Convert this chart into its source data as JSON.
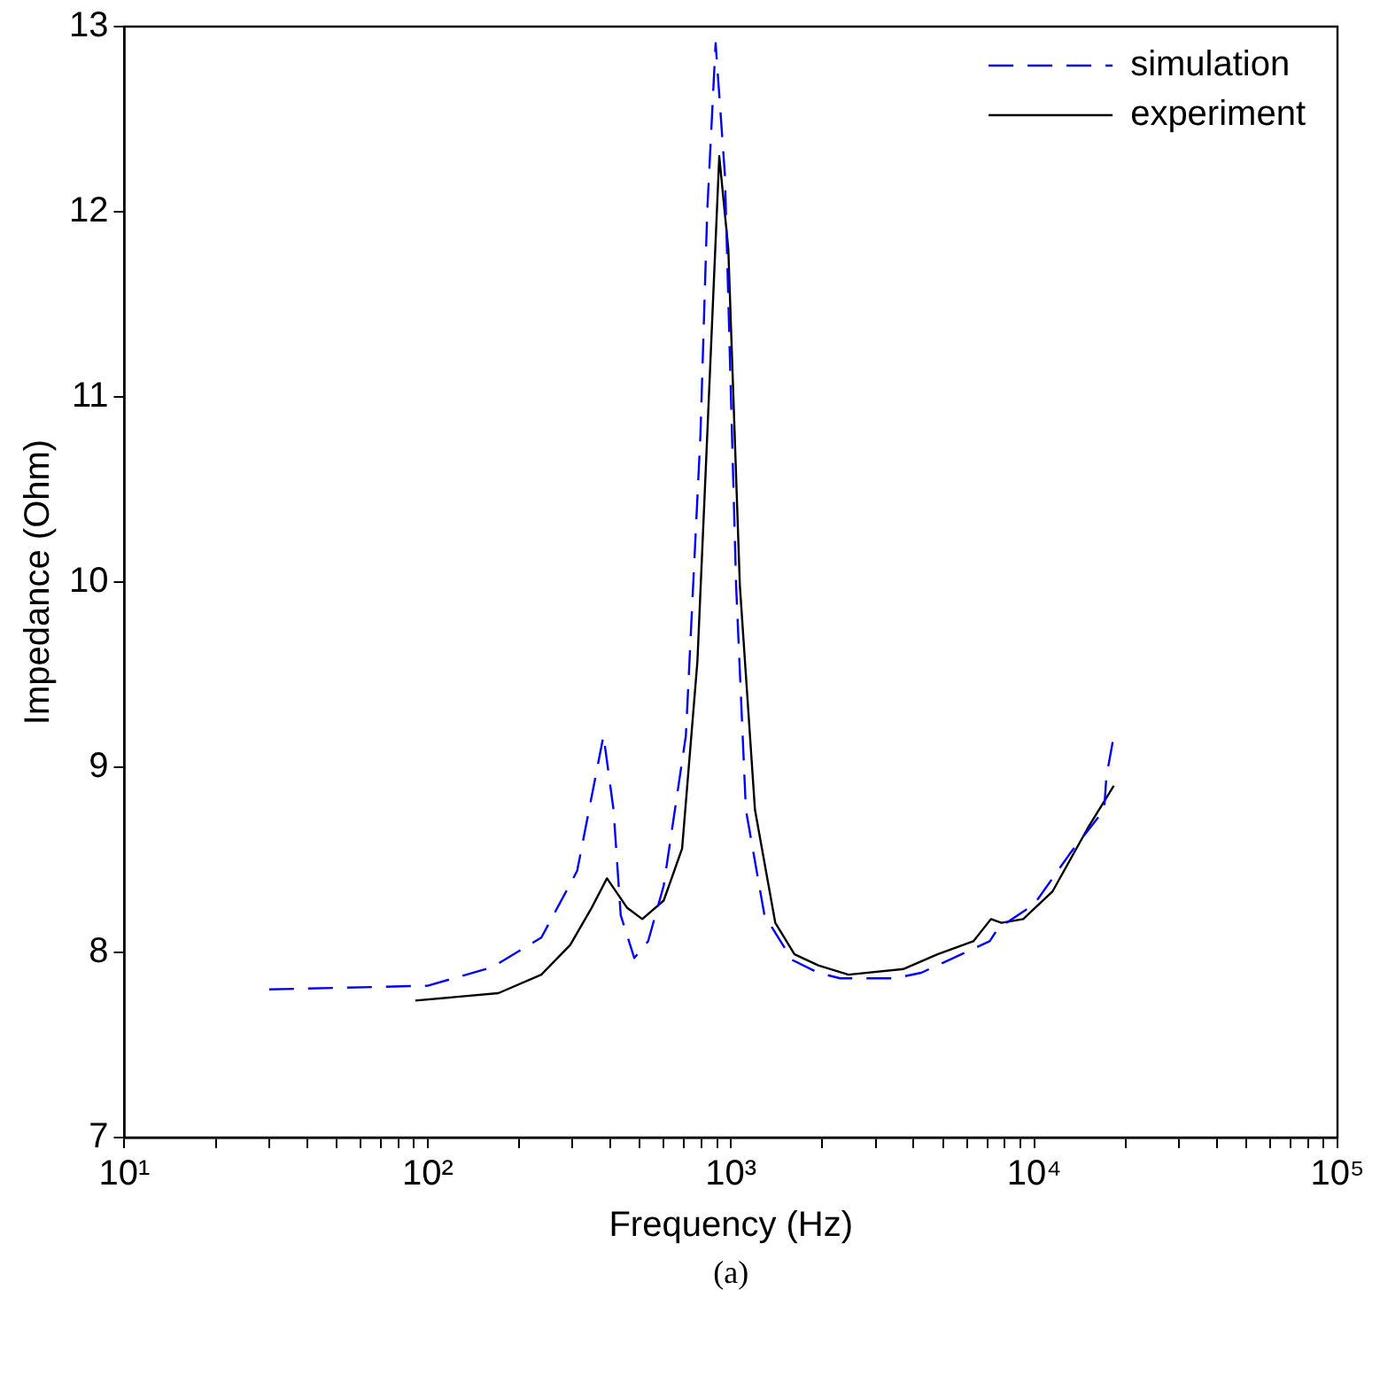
{
  "chart_data": {
    "type": "line",
    "xlabel": "Frequency (Hz)",
    "ylabel": "Impedance (Ohm)",
    "log": "x",
    "xlim": [
      10,
      100000
    ],
    "ylim": [
      7,
      13
    ],
    "xticks": [
      {
        "value": 10,
        "label": "10¹"
      },
      {
        "value": 20,
        "label": null
      },
      {
        "value": 30,
        "label": null
      },
      {
        "value": 40,
        "label": null
      },
      {
        "value": 50,
        "label": null
      },
      {
        "value": 60,
        "label": null
      },
      {
        "value": 70,
        "label": null
      },
      {
        "value": 80,
        "label": null
      },
      {
        "value": 90,
        "label": null
      },
      {
        "value": 100,
        "label": "10²"
      },
      {
        "value": 200,
        "label": null
      },
      {
        "value": 300,
        "label": null
      },
      {
        "value": 400,
        "label": null
      },
      {
        "value": 500,
        "label": null
      },
      {
        "value": 600,
        "label": null
      },
      {
        "value": 700,
        "label": null
      },
      {
        "value": 800,
        "label": null
      },
      {
        "value": 900,
        "label": null
      },
      {
        "value": 1000,
        "label": "10³"
      },
      {
        "value": 2000,
        "label": null
      },
      {
        "value": 3000,
        "label": null
      },
      {
        "value": 4000,
        "label": null
      },
      {
        "value": 5000,
        "label": null
      },
      {
        "value": 6000,
        "label": null
      },
      {
        "value": 7000,
        "label": null
      },
      {
        "value": 8000,
        "label": null
      },
      {
        "value": 9000,
        "label": null
      },
      {
        "value": 10000,
        "label": "10⁴"
      },
      {
        "value": 20000,
        "label": null
      },
      {
        "value": 30000,
        "label": null
      },
      {
        "value": 40000,
        "label": null
      },
      {
        "value": 50000,
        "label": null
      },
      {
        "value": 60000,
        "label": null
      },
      {
        "value": 70000,
        "label": null
      },
      {
        "value": 80000,
        "label": null
      },
      {
        "value": 90000,
        "label": null
      },
      {
        "value": 100000,
        "label": "10⁵"
      }
    ],
    "yticks": [
      7,
      8,
      9,
      10,
      11,
      12,
      13
    ],
    "grid": false,
    "legend": "top right",
    "marker": "none",
    "series": [
      {
        "name": "simulation",
        "color": "#0000ff",
        "line_style": "dashed",
        "x": [
          30,
          100,
          163,
          237,
          311,
          380,
          410,
          433,
          480,
          533,
          600,
          710,
          793,
          835,
          890,
          955,
          1040,
          1120,
          1290,
          1590,
          1940,
          2290,
          3460,
          4240,
          7130,
          7600,
          10000,
          13200,
          17000,
          17300,
          18300
        ],
        "values": [
          7.8,
          7.82,
          7.92,
          8.08,
          8.44,
          9.17,
          8.77,
          8.2,
          7.97,
          8.06,
          8.36,
          9.17,
          10.79,
          12.0,
          12.91,
          12.2,
          9.98,
          8.77,
          8.2,
          7.96,
          7.89,
          7.86,
          7.86,
          7.89,
          8.06,
          8.13,
          8.26,
          8.54,
          8.77,
          8.95,
          9.17
        ]
      },
      {
        "name": "experiment",
        "color": "#000000",
        "line_style": "solid",
        "x": [
          91,
          171,
          237,
          295,
          347,
          390,
          455,
          510,
          600,
          690,
          775,
          835,
          915,
          980,
          1070,
          1200,
          1400,
          1620,
          1940,
          2440,
          3700,
          4800,
          6300,
          7200,
          7800,
          9200,
          11500,
          15000,
          18300
        ],
        "values": [
          7.74,
          7.78,
          7.88,
          8.04,
          8.24,
          8.4,
          8.24,
          8.18,
          8.28,
          8.56,
          9.57,
          10.79,
          12.3,
          11.8,
          9.98,
          8.77,
          8.16,
          7.99,
          7.93,
          7.88,
          7.91,
          7.99,
          8.06,
          8.18,
          8.16,
          8.18,
          8.33,
          8.67,
          8.9
        ]
      }
    ],
    "annotations": [
      "(a)"
    ]
  }
}
